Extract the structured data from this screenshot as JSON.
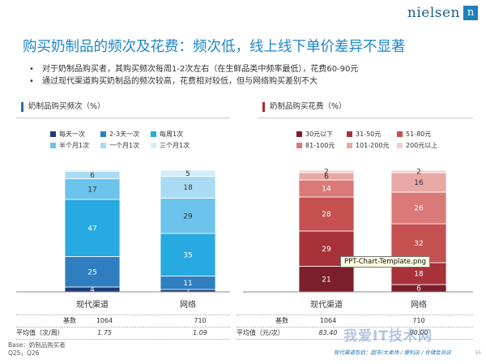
{
  "logo": {
    "word": "nielsen",
    "mark": "n"
  },
  "title": "购买奶制品的频次及花费：频次低，线上线下单价差异不显著",
  "bullets": [
    "对于奶制品购买者，其购买频次每周1-2次左右（在生鲜品类中频率最低），花费60-90元",
    "通过现代渠道购买奶制品的频次较高，花费相对较低，但与网络购买差别不大"
  ],
  "tooltip": "PPT-Chart-Template.png",
  "footer": {
    "base_line1": "Base：奶制品购买者",
    "base_line2": "Q25，Q26",
    "watermark": "我爱IT技术网",
    "note": "现代渠道包括：超市/大卖场 / 便利店 / 仓储会员店",
    "page": "55"
  },
  "chart_data": [
    {
      "type": "bar",
      "stacked": true,
      "title": "奶制品购买频次（%）",
      "categories": [
        "现代渠道",
        "网络"
      ],
      "series": [
        {
          "name": "每天一次",
          "color": "#1f3c78",
          "values": [
            4,
            2
          ]
        },
        {
          "name": "2-3天一次",
          "color": "#2f7fc0",
          "values": [
            25,
            11
          ]
        },
        {
          "name": "每周1次",
          "color": "#27a9e1",
          "values": [
            47,
            35
          ]
        },
        {
          "name": "半个月1次",
          "color": "#6cc3ec",
          "values": [
            17,
            29
          ]
        },
        {
          "name": "一个月1次",
          "color": "#a9dcf4",
          "values": [
            6,
            18
          ]
        },
        {
          "name": "三个月1次",
          "color": "#d3eefa",
          "values": [
            1,
            5
          ]
        }
      ],
      "ylim": [
        0,
        100
      ],
      "table": {
        "rows": [
          {
            "label": "基数",
            "values": [
              "1064",
              "710"
            ]
          },
          {
            "label": "平均值（次/周）",
            "values": [
              "1.75",
              "1.09"
            ]
          }
        ]
      }
    },
    {
      "type": "bar",
      "stacked": true,
      "title": "奶制品购买花费（%）",
      "categories": [
        "现代渠道",
        "网络"
      ],
      "series": [
        {
          "name": "30元以下",
          "color": "#7a1f2b",
          "values": [
            21,
            6
          ]
        },
        {
          "name": "31-50元",
          "color": "#a8323a",
          "values": [
            29,
            18
          ]
        },
        {
          "name": "51-80元",
          "color": "#c55050",
          "values": [
            28,
            32
          ]
        },
        {
          "name": "81-100元",
          "color": "#d97a78",
          "values": [
            14,
            26
          ]
        },
        {
          "name": "101-200元",
          "color": "#e8a8a6",
          "values": [
            6,
            16
          ]
        },
        {
          "name": "200元以上",
          "color": "#f2cfcd",
          "values": [
            2,
            2
          ]
        }
      ],
      "ylim": [
        0,
        100
      ],
      "table": {
        "rows": [
          {
            "label": "基数",
            "values": [
              "1064",
              "710"
            ]
          },
          {
            "label": "平均值（元/次）",
            "values": [
              "83.40",
              "90.00"
            ]
          }
        ]
      }
    }
  ]
}
